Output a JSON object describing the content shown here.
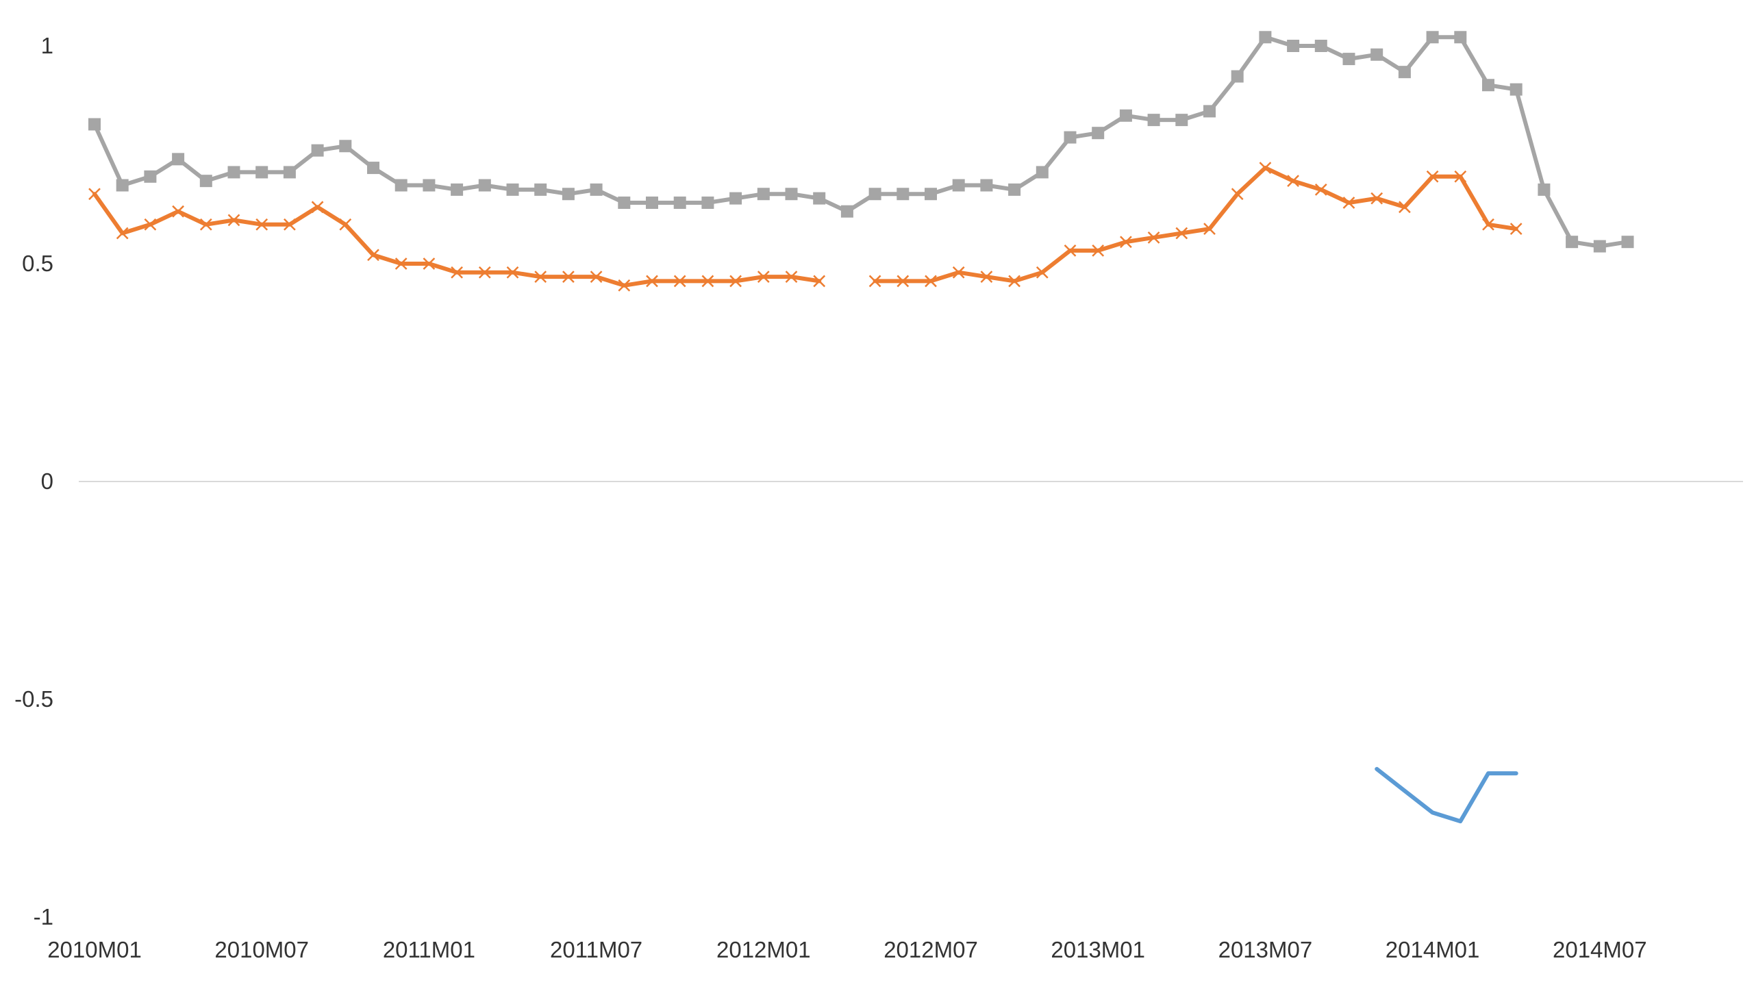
{
  "chart_data": {
    "type": "line",
    "title": "",
    "xlabel": "",
    "ylabel": "",
    "x_tick_labels": [
      "2010M01",
      "2010M07",
      "2011M01",
      "2011M07",
      "2012M01",
      "2012M07",
      "2013M01",
      "2013M07",
      "2014M01",
      "2014M07"
    ],
    "y_tick_labels": [
      "1",
      "0.5",
      "0",
      "-0.5",
      "-1"
    ],
    "y_ticks": [
      1,
      0.5,
      0,
      -0.5,
      -1
    ],
    "ylim": [
      -1,
      1
    ],
    "x_count": 56,
    "grid": false,
    "legend": "none",
    "series": [
      {
        "color": "#a5a5a5",
        "marker": "square",
        "values": [
          0.82,
          0.68,
          0.7,
          0.74,
          0.69,
          0.71,
          0.71,
          0.71,
          0.76,
          0.77,
          0.72,
          0.68,
          0.68,
          0.67,
          0.68,
          0.67,
          0.67,
          0.66,
          0.67,
          0.64,
          0.64,
          0.64,
          0.64,
          0.65,
          0.66,
          0.66,
          0.65,
          0.62,
          0.66,
          0.66,
          0.66,
          0.68,
          0.68,
          0.67,
          0.71,
          0.79,
          0.8,
          0.84,
          0.83,
          0.83,
          0.85,
          0.93,
          1.02,
          1.0,
          1.0,
          0.97,
          0.98,
          0.94,
          1.02,
          1.02,
          0.91,
          0.9,
          0.67,
          0.55,
          0.54,
          0.55
        ]
      },
      {
        "color": "#ed7d31",
        "marker": "x",
        "values": [
          0.66,
          0.57,
          0.59,
          0.62,
          0.59,
          0.6,
          0.59,
          0.59,
          0.63,
          0.59,
          0.52,
          0.5,
          0.5,
          0.48,
          0.48,
          0.48,
          0.47,
          0.47,
          0.47,
          0.45,
          0.46,
          0.46,
          0.46,
          0.46,
          0.47,
          0.47,
          0.46,
          null,
          0.46,
          0.46,
          0.46,
          0.48,
          0.47,
          0.46,
          0.48,
          0.53,
          0.53,
          0.55,
          0.56,
          0.57,
          0.58,
          0.66,
          0.72,
          0.69,
          0.67,
          0.64,
          0.65,
          0.63,
          0.7,
          0.7,
          0.59,
          0.58,
          null,
          null,
          null,
          null
        ]
      },
      {
        "color": "#5b9bd5",
        "marker": "none",
        "values": [
          null,
          null,
          null,
          null,
          null,
          null,
          null,
          null,
          null,
          null,
          null,
          null,
          null,
          null,
          null,
          null,
          null,
          null,
          null,
          null,
          null,
          null,
          null,
          null,
          null,
          null,
          null,
          null,
          null,
          null,
          null,
          null,
          null,
          null,
          null,
          null,
          null,
          null,
          null,
          null,
          null,
          null,
          null,
          null,
          null,
          null,
          -0.66,
          -0.71,
          -0.76,
          -0.78,
          -0.67,
          -0.67,
          null,
          null,
          null,
          null
        ]
      }
    ]
  }
}
